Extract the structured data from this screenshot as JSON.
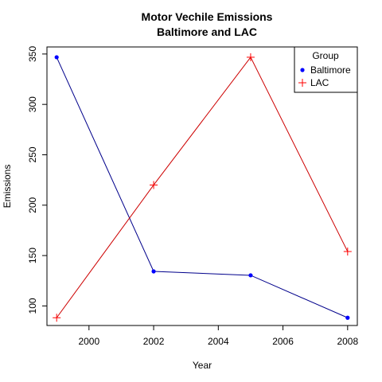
{
  "chart_data": {
    "type": "line",
    "title": "Motor Vechile Emissions",
    "subtitle": "Baltimore and LAC",
    "xlabel": "Year",
    "ylabel": "Emissions",
    "x": [
      1999,
      2002,
      2005,
      2008
    ],
    "xticks": [
      2000,
      2002,
      2004,
      2006,
      2008
    ],
    "yticks": [
      100,
      150,
      200,
      250,
      300,
      350
    ],
    "xlim": [
      1998.7,
      2008.3
    ],
    "ylim": [
      80.6,
      357.0
    ],
    "legend": {
      "title": "Group",
      "placement": "top-right"
    },
    "series": [
      {
        "name": "Baltimore",
        "values": [
          346.8,
          134.3,
          130.4,
          88.3
        ],
        "color": "#0000ff",
        "line_color": "#00008b",
        "marker": "circle"
      },
      {
        "name": "LAC",
        "values": [
          88.3,
          220.0,
          346.8,
          154.0
        ],
        "color": "#ff0000",
        "line_color": "#cd0000",
        "marker": "plus"
      }
    ]
  }
}
